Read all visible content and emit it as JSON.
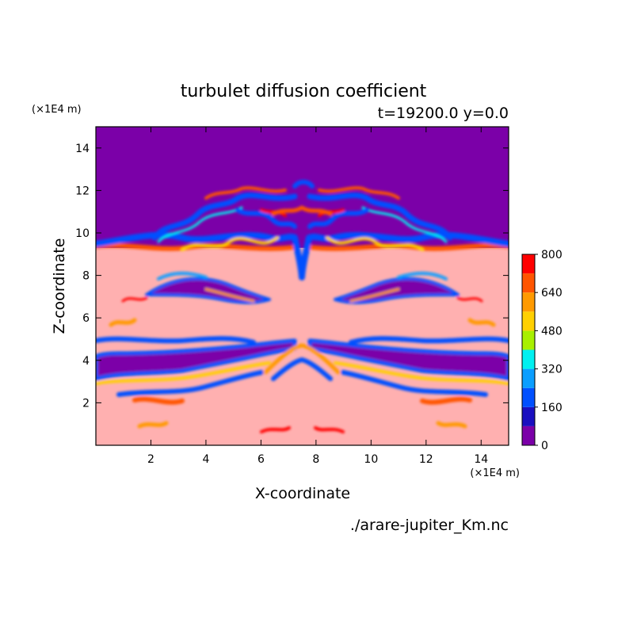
{
  "chart_data": {
    "type": "heatmap",
    "title": "turbulet diffusion coefficient",
    "subtitle": "t=19200.0 y=0.0",
    "xlabel": "X-coordinate",
    "ylabel": "Z-coordinate",
    "x_unit": "(×1E4 m)",
    "y_unit": "(×1E4 m)",
    "xlim": [
      0,
      15
    ],
    "ylim": [
      0,
      15
    ],
    "x_ticks": [
      "2",
      "4",
      "6",
      "8",
      "10",
      "12",
      "14"
    ],
    "y_ticks": [
      "2",
      "4",
      "6",
      "8",
      "10",
      "12",
      "14"
    ],
    "grid": false,
    "colorbar": {
      "levels": [
        0,
        80,
        160,
        240,
        320,
        400,
        480,
        560,
        640,
        720,
        800
      ],
      "tick_labels": [
        "0",
        "160",
        "320",
        "480",
        "640",
        "800"
      ],
      "colors": [
        "#7b00a8",
        "#1a0fc0",
        "#0050ff",
        "#0a9eff",
        "#00f0f0",
        "#a8f000",
        "#ffd000",
        "#ff9a00",
        "#ff5500",
        "#ff0000",
        "#ffb0b0"
      ]
    },
    "regions": {
      "upper_layer_z_above": 9.3,
      "upper_layer_value": 0,
      "lower_layer_value": 800,
      "mirror_symmetry_x": 7.5
    },
    "footer": "./arare-jupiter_Km.nc"
  }
}
